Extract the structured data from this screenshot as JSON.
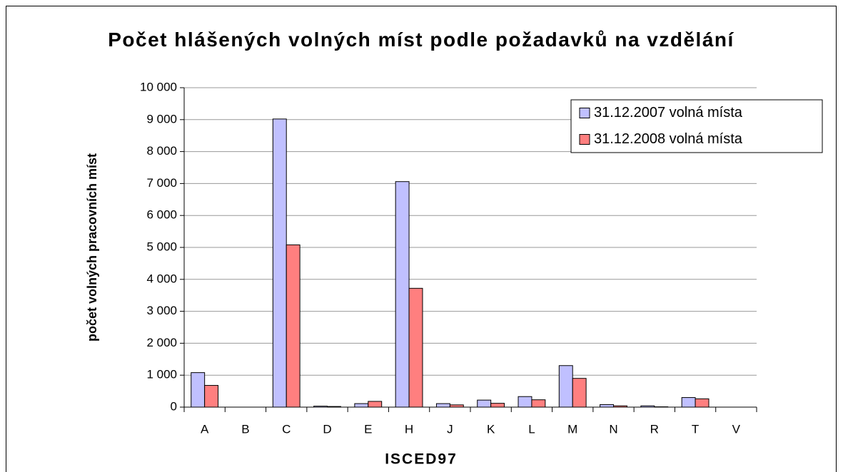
{
  "chart_data": {
    "type": "bar",
    "title": "Počet hlášených volných míst podle požadavků na vzdělání",
    "x_label": "ISCED97",
    "y_label": "počet volných pracovních míst",
    "categories": [
      "A",
      "B",
      "C",
      "D",
      "E",
      "H",
      "J",
      "K",
      "L",
      "M",
      "N",
      "R",
      "T",
      "V"
    ],
    "series": [
      {
        "name": "31.12.2007 volná místa",
        "color": "#c0c0ff",
        "values": [
          1080,
          0,
          9020,
          30,
          110,
          7060,
          110,
          220,
          330,
          1300,
          80,
          40,
          300,
          0
        ]
      },
      {
        "name": "31.12.2008 volná místa",
        "color": "#ff7f7f",
        "values": [
          680,
          0,
          5080,
          20,
          180,
          3720,
          70,
          120,
          230,
          900,
          40,
          10,
          260,
          0
        ]
      }
    ],
    "ylim": [
      0,
      10000
    ],
    "yticks": [
      0,
      {
        "value": 1000,
        "label": "1 000"
      },
      {
        "value": 2000,
        "label": "2 000"
      },
      {
        "value": 3000,
        "label": "3 000"
      },
      {
        "value": 4000,
        "label": "4 000"
      },
      {
        "value": 5000,
        "label": "5 000"
      },
      {
        "value": 6000,
        "label": "6 000"
      },
      {
        "value": 7000,
        "label": "7 000"
      },
      {
        "value": 8000,
        "label": "8 000"
      },
      {
        "value": 9000,
        "label": "9 000"
      },
      {
        "value": 10000,
        "label": "10 000"
      }
    ],
    "grid": true,
    "legend": "top-right"
  }
}
